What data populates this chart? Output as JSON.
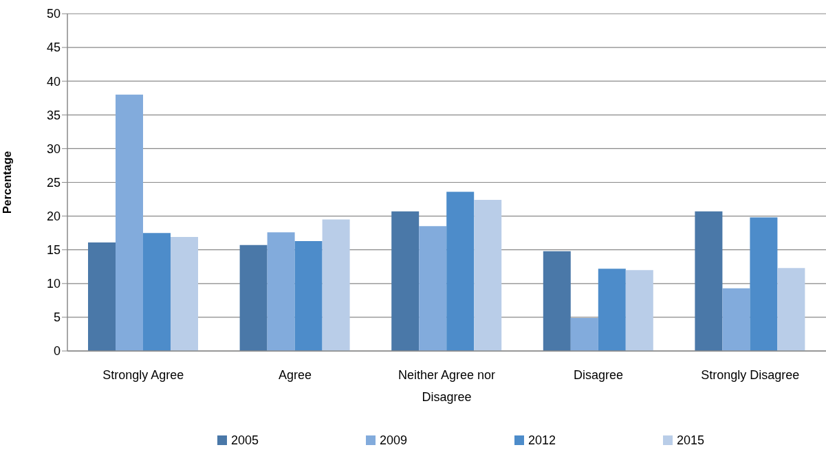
{
  "chart_data": {
    "type": "bar",
    "ylabel": "Percentage",
    "categories": [
      "Strongly Agree",
      "Agree",
      "Neither Agree nor Disagree",
      "Disagree",
      "Strongly Disagree"
    ],
    "series": [
      {
        "name": "2005",
        "color": "#4a78a8",
        "values": [
          16.1,
          15.7,
          20.7,
          14.8,
          20.7
        ]
      },
      {
        "name": "2009",
        "color": "#82abdc",
        "values": [
          38.0,
          17.6,
          18.5,
          4.9,
          9.3
        ]
      },
      {
        "name": "2012",
        "color": "#4d8cca",
        "values": [
          17.5,
          16.3,
          23.6,
          12.2,
          19.8
        ]
      },
      {
        "name": "2015",
        "color": "#b9cde8",
        "values": [
          16.9,
          19.5,
          22.4,
          12.0,
          12.3
        ]
      }
    ],
    "ylim": [
      0,
      50
    ],
    "yticks": [
      0,
      5,
      10,
      15,
      20,
      25,
      30,
      35,
      40,
      45,
      50
    ],
    "grid": "y",
    "legend": "bottom"
  }
}
